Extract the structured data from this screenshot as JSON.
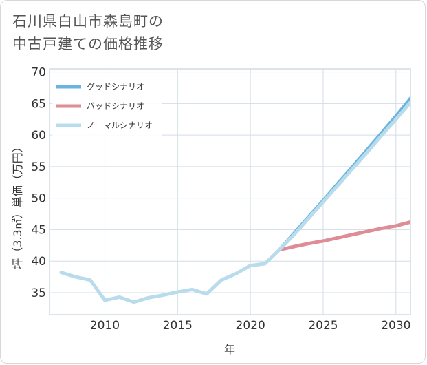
{
  "page": {
    "title_line1": "石川県白山市森島町の",
    "title_line2": "中古戸建ての価格推移"
  },
  "chart_data": {
    "type": "line",
    "title": "石川県白山市森島町の中古戸建ての価格推移",
    "xlabel": "年",
    "ylabel": "坪（3.3㎡）単価（万円）",
    "xlim": [
      2006.2,
      2031
    ],
    "ylim": [
      31.5,
      70.5
    ],
    "xticks": [
      2010,
      2015,
      2020,
      2025,
      2030
    ],
    "yticks": [
      35,
      40,
      45,
      50,
      55,
      60,
      65,
      70
    ],
    "grid": true,
    "legend_position": "top-left",
    "series": [
      {
        "name": "グッドシナリオ",
        "color": "#6cb4e0",
        "x": [
          2022,
          2023,
          2024,
          2025,
          2026,
          2027,
          2028,
          2029,
          2030,
          2031
        ],
        "values": [
          41.8,
          44.4,
          47.0,
          49.6,
          52.3,
          54.9,
          57.6,
          60.3,
          63.0,
          65.8
        ]
      },
      {
        "name": "バッドシナリオ",
        "color": "#de8c95",
        "x": [
          2022,
          2023,
          2024,
          2025,
          2026,
          2027,
          2028,
          2029,
          2030,
          2031
        ],
        "values": [
          41.8,
          42.3,
          42.8,
          43.2,
          43.7,
          44.2,
          44.7,
          45.2,
          45.6,
          46.2
        ]
      },
      {
        "name": "ノーマルシナリオ",
        "color": "#b9dced",
        "x": [
          2007,
          2008,
          2009,
          2010,
          2011,
          2012,
          2013,
          2014,
          2015,
          2016,
          2017,
          2018,
          2019,
          2020,
          2021,
          2022,
          2023,
          2024,
          2025,
          2026,
          2027,
          2028,
          2029,
          2030,
          2031
        ],
        "values": [
          38.2,
          37.5,
          37.0,
          33.8,
          34.3,
          33.5,
          34.2,
          34.6,
          35.1,
          35.5,
          34.8,
          37.0,
          38.0,
          39.3,
          39.6,
          41.8,
          44.2,
          46.8,
          49.4,
          52.0,
          54.6,
          57.2,
          59.9,
          62.5,
          65.2
        ]
      }
    ]
  }
}
